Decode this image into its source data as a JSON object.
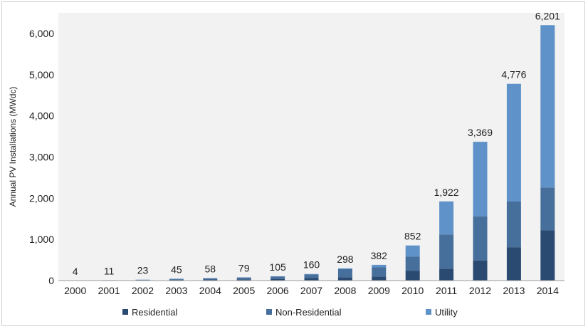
{
  "chart_data": {
    "type": "bar",
    "stacked": true,
    "title": "",
    "xlabel": "",
    "ylabel": "Annual PV Installations (MWdc)",
    "ylim": [
      0,
      6500
    ],
    "yticks": [
      0,
      1000,
      2000,
      3000,
      4000,
      5000,
      6000
    ],
    "ytick_labels": [
      "0",
      "1,000",
      "2,000",
      "3,000",
      "4,000",
      "5,000",
      "6,000"
    ],
    "grid": false,
    "legend_position": "bottom",
    "categories": [
      "2000",
      "2001",
      "2002",
      "2003",
      "2004",
      "2005",
      "2006",
      "2007",
      "2008",
      "2009",
      "2010",
      "2011",
      "2012",
      "2013",
      "2014"
    ],
    "series": [
      {
        "name": "Residential",
        "color": "#2a4a72",
        "values": [
          2,
          5,
          10,
          20,
          25,
          30,
          40,
          60,
          80,
          100,
          240,
          290,
          490,
          810,
          1220
        ]
      },
      {
        "name": "Non-Residential",
        "color": "#466f9c",
        "values": [
          2,
          5,
          10,
          20,
          30,
          45,
          60,
          90,
          200,
          220,
          340,
          830,
          1070,
          1110,
          1040
        ]
      },
      {
        "name": "Utility",
        "color": "#5f92c8",
        "values": [
          0,
          1,
          3,
          5,
          3,
          4,
          5,
          10,
          18,
          62,
          272,
          802,
          1809,
          2856,
          3941
        ]
      }
    ],
    "totals": [
      4,
      11,
      23,
      45,
      58,
      79,
      105,
      160,
      298,
      382,
      852,
      1922,
      3369,
      4776,
      6201
    ],
    "total_labels": [
      "4",
      "11",
      "23",
      "45",
      "58",
      "79",
      "105",
      "160",
      "298",
      "382",
      "852",
      "1,922",
      "3,369",
      "4,776",
      "6,201"
    ]
  },
  "colors": {
    "plot_background": "#f2f2f2",
    "axis": "#9a9a9a"
  }
}
